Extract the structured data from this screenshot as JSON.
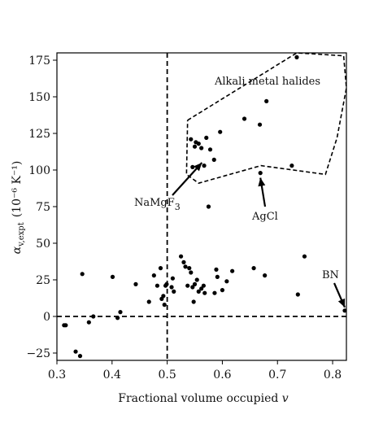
{
  "chart_data": {
    "type": "scatter",
    "title": "",
    "xlabel": "Fractional volume occupied v",
    "ylabel_main": "α",
    "ylabel_sub": "v,expt",
    "ylabel_units": "(10⁻⁶ K⁻¹)",
    "xlim": [
      0.3,
      0.825
    ],
    "ylim": [
      -30,
      180
    ],
    "xticks": [
      0.3,
      0.4,
      0.5,
      0.6,
      0.7,
      0.8
    ],
    "xtick_labels": [
      "0.3",
      "0.4",
      "0.5",
      "0.6",
      "0.7",
      "0.8"
    ],
    "yticks": [
      -25,
      0,
      25,
      50,
      75,
      100,
      125,
      150,
      175
    ],
    "ytick_labels": [
      "−25",
      "0",
      "25",
      "50",
      "75",
      "100",
      "125",
      "150",
      "175"
    ],
    "grid": false,
    "reference_lines": {
      "vertical_x": 0.5,
      "horizontal_y": 0
    },
    "points": [
      [
        0.313,
        -6
      ],
      [
        0.316,
        -6
      ],
      [
        0.334,
        -24
      ],
      [
        0.342,
        -27
      ],
      [
        0.346,
        29
      ],
      [
        0.358,
        -4
      ],
      [
        0.366,
        0
      ],
      [
        0.401,
        27
      ],
      [
        0.41,
        -1
      ],
      [
        0.415,
        3
      ],
      [
        0.443,
        22
      ],
      [
        0.467,
        10
      ],
      [
        0.476,
        28
      ],
      [
        0.482,
        21
      ],
      [
        0.488,
        33
      ],
      [
        0.49,
        12
      ],
      [
        0.493,
        14
      ],
      [
        0.495,
        8
      ],
      [
        0.497,
        21
      ],
      [
        0.499,
        22
      ],
      [
        0.508,
        20
      ],
      [
        0.51,
        26
      ],
      [
        0.512,
        17
      ],
      [
        0.525,
        41
      ],
      [
        0.53,
        37
      ],
      [
        0.533,
        34
      ],
      [
        0.537,
        21
      ],
      [
        0.54,
        33
      ],
      [
        0.543,
        30
      ],
      [
        0.546,
        20
      ],
      [
        0.548,
        10
      ],
      [
        0.55,
        22
      ],
      [
        0.554,
        25
      ],
      [
        0.557,
        17
      ],
      [
        0.562,
        19
      ],
      [
        0.566,
        21
      ],
      [
        0.568,
        16
      ],
      [
        0.586,
        16
      ],
      [
        0.589,
        32
      ],
      [
        0.591,
        27
      ],
      [
        0.6,
        18
      ],
      [
        0.608,
        24
      ],
      [
        0.618,
        31
      ],
      [
        0.657,
        33
      ],
      [
        0.677,
        28
      ],
      [
        0.737,
        15
      ],
      [
        0.749,
        41
      ],
      [
        0.822,
        4
      ],
      [
        0.543,
        121
      ],
      [
        0.546,
        102
      ],
      [
        0.55,
        116
      ],
      [
        0.552,
        119
      ],
      [
        0.557,
        118
      ],
      [
        0.562,
        115
      ],
      [
        0.567,
        103
      ],
      [
        0.571,
        122
      ],
      [
        0.578,
        114
      ],
      [
        0.585,
        107
      ],
      [
        0.596,
        126
      ],
      [
        0.64,
        135
      ],
      [
        0.668,
        131
      ],
      [
        0.68,
        147
      ],
      [
        0.726,
        103
      ],
      [
        0.735,
        177
      ],
      [
        0.669,
        98
      ],
      [
        0.575,
        75
      ]
    ],
    "annotations": [
      {
        "text": "Alkali metal halides"
      },
      {
        "text": "NaMgF",
        "subscript": "3",
        "target": [
          0.563,
          105
        ]
      },
      {
        "text": "AgCl",
        "target": [
          0.669,
          98
        ]
      },
      {
        "text": "BN",
        "target": [
          0.822,
          4
        ]
      }
    ],
    "region_outline": [
      [
        0.537,
        134
      ],
      [
        0.735,
        180
      ],
      [
        0.82,
        178
      ],
      [
        0.828,
        156
      ],
      [
        0.808,
        122
      ],
      [
        0.787,
        97
      ],
      [
        0.67,
        103
      ],
      [
        0.557,
        91
      ],
      [
        0.535,
        97
      ]
    ]
  }
}
